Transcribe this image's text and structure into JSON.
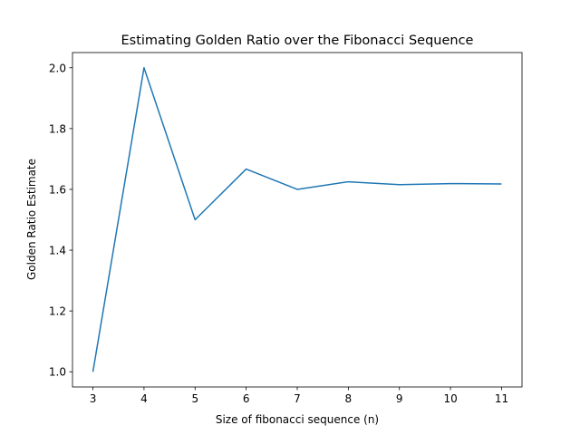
{
  "chart_data": {
    "type": "line",
    "title": "Estimating Golden Ratio over the Fibonacci Sequence",
    "xlabel": "Size of fibonacci sequence (n)",
    "ylabel": "Golden Ratio Estimate",
    "x": [
      3,
      4,
      5,
      6,
      7,
      8,
      9,
      10,
      11
    ],
    "series": [
      {
        "values": [
          1.0,
          2.0,
          1.5,
          1.6667,
          1.6,
          1.625,
          1.6154,
          1.619,
          1.6176
        ],
        "color": "#1f77b4"
      }
    ],
    "xlim": [
      2.6,
      11.4
    ],
    "ylim": [
      0.95,
      2.05
    ],
    "xticks": [
      3,
      4,
      5,
      6,
      7,
      8,
      9,
      10,
      11
    ],
    "yticks": [
      1.0,
      1.2,
      1.4,
      1.6,
      1.8,
      2.0
    ],
    "ytick_labels": [
      "1.0",
      "1.2",
      "1.4",
      "1.6",
      "1.8",
      "2.0"
    ],
    "grid": false,
    "legend": "none"
  }
}
